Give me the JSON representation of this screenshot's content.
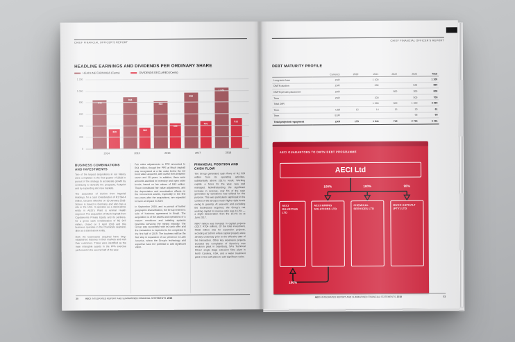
{
  "running_header": "CHIEF FINANCIAL OFFICER'S REPORT",
  "footer": {
    "brand": "AECI",
    "title_rest": "INTEGRATED REPORT AND SUMMARISED FINANCIAL STATEMENTS",
    "year": "2018",
    "left_page_number": "30",
    "right_page_number": "31"
  },
  "colors": {
    "earnings_bar": "#ab6168",
    "dividends_bar": "#e23b4d",
    "panel_red": "#d01f38",
    "panel_header_red": "#a9142c",
    "accent_red": "#d0203a"
  },
  "chart_data": {
    "type": "bar",
    "title": "HEADLINE EARNINGS AND DIVIDENDS PER ORDINARY SHARE",
    "categories": [
      "2014",
      "2015",
      "2016",
      "2017",
      "2018"
    ],
    "series": [
      {
        "name": "HEADLINE EARNINGS (Cents)",
        "color": "#ab6168",
        "values": [
          843,
          894,
          818,
          958,
          1046
        ],
        "labels": [
          "843",
          "894",
          "818",
          "958",
          "1 046"
        ]
      },
      {
        "name": "DIVIDENDS DECLARED (Cents)",
        "color": "#e23b4d",
        "values": [
          340,
          365,
          435,
          470,
          512
        ],
        "labels": [
          "340",
          "365",
          "435",
          "470",
          "512"
        ]
      }
    ],
    "ylim": [
      0,
      1200
    ],
    "yticks": [
      "1 200",
      "1 000",
      "800",
      "600",
      "400",
      "200",
      "0"
    ],
    "grid": true,
    "legend_position": "top-left"
  },
  "left_sections": {
    "business": {
      "heading": "BUSINESS COMBINATIONS AND INVESTMENTS",
      "col1": [
        "Two of the largest acquisitions in our history were completed in the first quarter of 2018 in pursuit of the strategy to accelerate growth by continuing to diversify the prospects, footprint and by expanding into new markets.",
        "The acquisition of Schirm from Imperial Holdings, for a cash consideration of R1 584.4 million, became effective on 30 January 2018. Schirm is based in Germany and also has a site in the USA. It operates as a stand-alone entity in AECI's Plant & Animal Health segment. The acquisition of Much Asphalt from Capitalworks Private Equity and its partners, for a gross cash consideration of R2 047 million, closed on 3 April 2018 and this business operates in the Chemicals segment, also as a stand-alone entity.",
        "Both the businesses acquired have long-established histories in their markets and with their customers. These were identified as the main intangible assets in the PPA exercise performed in the second half of the year."
      ],
      "col2": [
        "Fair value adjustments to PPE amounted to R64 million, though the PPE at Much Asphalt was recognised at a fair value below the net book value acquired, with useful lives between seven and 30 years. In addition, there were amounts ascribed to inventory and open order books, based on fair values of R42 million. These constituted fair value adjustments, and the depreciation and amortisation effects on the non-current assets, especially in the first two years after the acquisitions, are expected to have an impact in 2019.",
        "In September 2018, and in pursuit of further geographic diversification, the Group entered a sale of business agreement in Brazil. The acquisition is of the assets and operations of a mature emulsions and initiating systems business servicing the mining industry. The Group was successful with its cash offer and the transaction is expected to be completed in the first half of 2019. The business will be the first step in expansion of our presence in Latin America, where the Group's technology and expertise have the potential to add significant value."
      ]
    },
    "financial": {
      "heading": "FINANCIAL POSITION AND CASH FLOW",
      "paras": [
        "The Group generated cash flows of R2 329 million from its operating activities, substantially above 2017's result. Working capital, a focus for the year, was well managed. Notwithstanding the significant increase in revenue, only 5% of the cash generated by operations was utilised for this purpose. This was particularly significant in the context of the Group's much higher debt levels owing to gearing. At year-end and excluding the businesses acquired, the Group's net working capital to revenue ratio was 16.2% — a slight deterioration from the 15.4% as at June 2017.",
        "R847 million was invested in capital projects (2017: R704 million). Of the total investment, R528 million was for expansion projects, including at Schirm where capital projects were already underway prior to the effective date of the transaction. Other key expansion projects included the completion of Senmin's new emulsion plant in Sasolburg, SA's Technical Fibres' single stage extrusion fibre plant in North Carolina, USA, and a water treatment plant in line with plans to add significant value."
      ]
    }
  },
  "debt_table": {
    "title": "DEBT MATURITY PROFILE",
    "columns": {
      "label": "",
      "currency": "Currency",
      "years": [
        "2020",
        "2021",
        "2022",
        "2023"
      ],
      "total": "Total"
    },
    "rows": [
      {
        "label": "Long-term loan",
        "currency": "ZAR",
        "values": [
          "",
          "1 100",
          "",
          ""
        ],
        "total": "1 100",
        "bold": false
      },
      {
        "label": "DMTN auction",
        "currency": "ZAR",
        "values": [
          "",
          "360",
          "",
          "520"
        ],
        "total": "880",
        "bold": false
      },
      {
        "label": "DMTN private placement",
        "currency": "ZAR",
        "values": [
          "",
          "",
          "500",
          "300"
        ],
        "total": "800",
        "bold": false
      },
      {
        "label": "Term",
        "currency": "ZAR",
        "values": [
          "",
          "200",
          "",
          "500"
        ],
        "total": "700",
        "bold": false
      },
      {
        "label": "Total ZAR",
        "currency": "",
        "values": [
          "",
          "1 660",
          "500",
          "1 320"
        ],
        "total": "3 480",
        "bold": false
      },
      {
        "label": "Term",
        "currency": "US$",
        "values": [
          "12",
          "14",
          "15",
          "20"
        ],
        "total": "61",
        "bold": false
      },
      {
        "label": "Term",
        "currency": "EUR",
        "values": [
          "",
          "",
          "",
          "68"
        ],
        "total": "68",
        "bold": false
      },
      {
        "label": "Total projected repayment",
        "currency": "ZAR",
        "values": [
          "179",
          "1 841",
          "716",
          "2 725"
        ],
        "total": "5 461",
        "bold": true
      }
    ]
  },
  "diagram": {
    "title": "AECI GUARANTORS TO DMTN DEBT PROGRAMME",
    "parent": "AECI Ltd",
    "children": [
      {
        "name": "AECI MAURITIUS LTD",
        "ownership": "100%"
      },
      {
        "name": "AECI MINING SOLUTIONS LTD",
        "ownership": "100%"
      },
      {
        "name": "CHEMICAL SERVICES LTD",
        "ownership": "100%"
      },
      {
        "name": "MUCH ASPHALT (PTY) LTD",
        "ownership": "98%"
      }
    ]
  }
}
